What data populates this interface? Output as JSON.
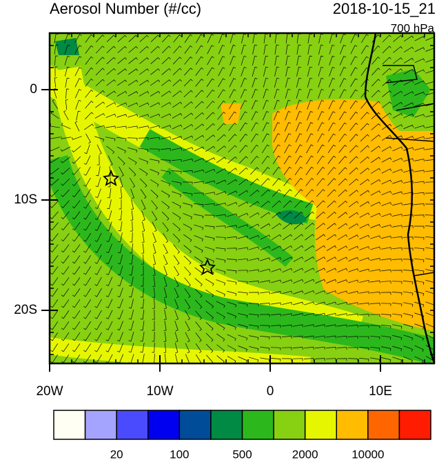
{
  "header": {
    "title": "Aerosol Number (#/cc)",
    "date": "2018-10-15_21",
    "level": "700 hPa"
  },
  "axes": {
    "lat_labels": [
      "0",
      "10S",
      "20S"
    ],
    "lon_labels": [
      "20W",
      "10W",
      "0",
      "10E"
    ]
  },
  "colorbar": {
    "colors": [
      "#fffff4",
      "#a4a4ff",
      "#4a4aff",
      "#0000f0",
      "#004c98",
      "#008a44",
      "#2cb81c",
      "#88d012",
      "#e6f600",
      "#ffbc00",
      "#ff6600",
      "#ff1c00"
    ],
    "labels": [
      "20",
      "100",
      "500",
      "2000",
      "10000"
    ]
  }
}
